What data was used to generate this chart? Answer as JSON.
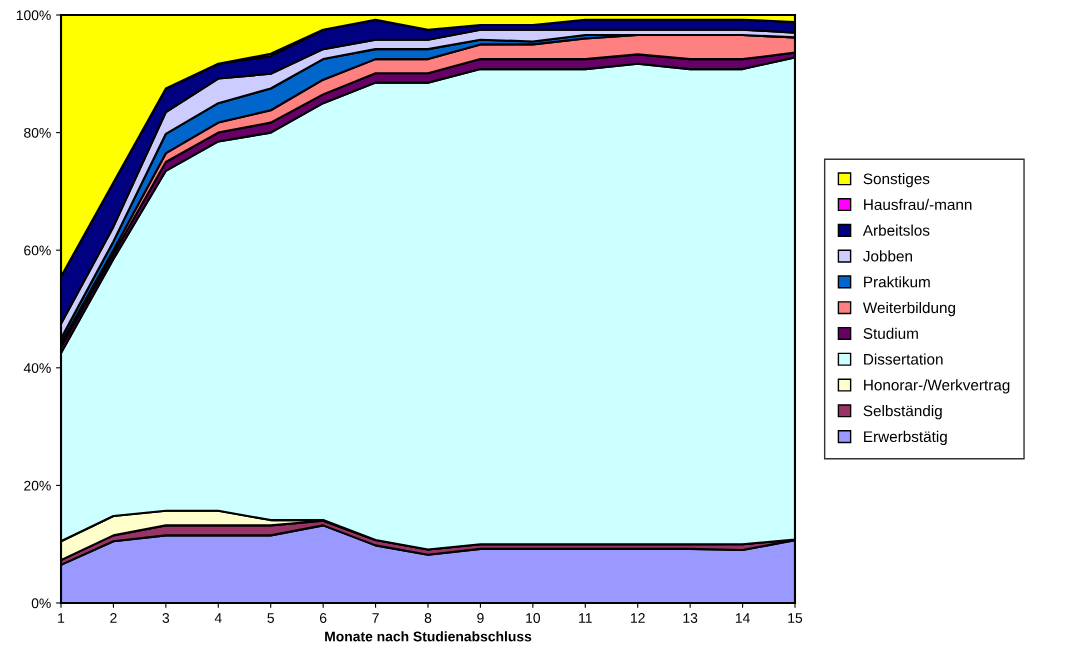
{
  "chart_data": {
    "type": "area",
    "stacked": true,
    "xlabel": "Monate nach Studienabschluss",
    "x": [
      1,
      2,
      3,
      4,
      5,
      6,
      7,
      8,
      9,
      10,
      11,
      12,
      13,
      14,
      15
    ],
    "xlim": [
      1,
      15
    ],
    "xticks": [
      1,
      2,
      3,
      4,
      5,
      6,
      7,
      8,
      9,
      10,
      11,
      12,
      13,
      14,
      15
    ],
    "ylim": [
      0,
      100
    ],
    "yticks": [
      {
        "value": 0,
        "label": "0%"
      },
      {
        "value": 20,
        "label": "20%"
      },
      {
        "value": 40,
        "label": "40%"
      },
      {
        "value": 60,
        "label": "60%"
      },
      {
        "value": 80,
        "label": "80%"
      },
      {
        "value": 100,
        "label": "100%"
      }
    ],
    "grid": false,
    "legend": "right",
    "series": [
      {
        "name": "Erwerbstätig",
        "color": "#9999ff",
        "values": [
          6.5,
          10.5,
          11.5,
          11.5,
          11.5,
          13.2,
          9.8,
          8.2,
          9.2,
          9.2,
          9.2,
          9.2,
          9.2,
          9.0,
          10.7
        ]
      },
      {
        "name": "Selbständig",
        "color": "#993366",
        "values": [
          0.8,
          1.0,
          1.7,
          1.7,
          1.7,
          0.8,
          0.9,
          0.9,
          0.8,
          0.8,
          0.8,
          0.8,
          0.8,
          1.0,
          0.1
        ]
      },
      {
        "name": "Honorar-/Werkvertrag",
        "color": "#ffffcc",
        "values": [
          3.2,
          3.3,
          2.5,
          2.5,
          0.9,
          0.1,
          0,
          0,
          0,
          0,
          0,
          0,
          0,
          0,
          0
        ]
      },
      {
        "name": "Dissertation",
        "color": "#ccffff",
        "values": [
          32.0,
          43.7,
          57.8,
          62.8,
          65.9,
          70.9,
          77.8,
          79.4,
          80.8,
          80.8,
          80.8,
          81.7,
          80.8,
          80.8,
          82.0
        ]
      },
      {
        "name": "Studium",
        "color": "#660066",
        "values": [
          1.0,
          0.8,
          1.5,
          1.5,
          1.7,
          1.5,
          1.6,
          1.6,
          1.7,
          1.7,
          1.7,
          1.6,
          1.7,
          1.7,
          0.8
        ]
      },
      {
        "name": "Weiterbildung",
        "color": "#ff8080",
        "values": [
          0.7,
          0.7,
          1.5,
          1.7,
          2.1,
          2.5,
          2.4,
          2.4,
          2.5,
          2.5,
          3.5,
          3.3,
          4.1,
          4.1,
          2.6
        ]
      },
      {
        "name": "Praktikum",
        "color": "#0066cc",
        "values": [
          0.8,
          1.5,
          3.3,
          3.3,
          3.7,
          3.5,
          1.7,
          1.7,
          0.8,
          0.5,
          0.6,
          0,
          0,
          0,
          0
        ]
      },
      {
        "name": "Jobben",
        "color": "#ccccff",
        "values": [
          2.5,
          2.5,
          3.7,
          4.2,
          2.5,
          1.7,
          1.6,
          1.6,
          1.7,
          2.0,
          0.9,
          0.9,
          0.9,
          0.9,
          0.8
        ]
      },
      {
        "name": "Arbeitslos",
        "color": "#000080",
        "values": [
          8.0,
          7.5,
          4.0,
          2.5,
          3.0,
          3.3,
          3.4,
          1.7,
          0.8,
          0.8,
          1.7,
          1.7,
          1.7,
          1.7,
          1.8
        ]
      },
      {
        "name": "Hausfrau/-mann",
        "color": "#ff00ff",
        "values": [
          0,
          0,
          0,
          0,
          0.4,
          0,
          0,
          0,
          0,
          0,
          0,
          0,
          0,
          0,
          0
        ]
      },
      {
        "name": "Sonstiges",
        "color": "#ffff00",
        "values": [
          44.5,
          28.5,
          12.5,
          8.3,
          6.6,
          2.5,
          0.8,
          2.5,
          1.7,
          1.7,
          0.8,
          0.8,
          0.8,
          0.8,
          1.2
        ]
      }
    ]
  }
}
